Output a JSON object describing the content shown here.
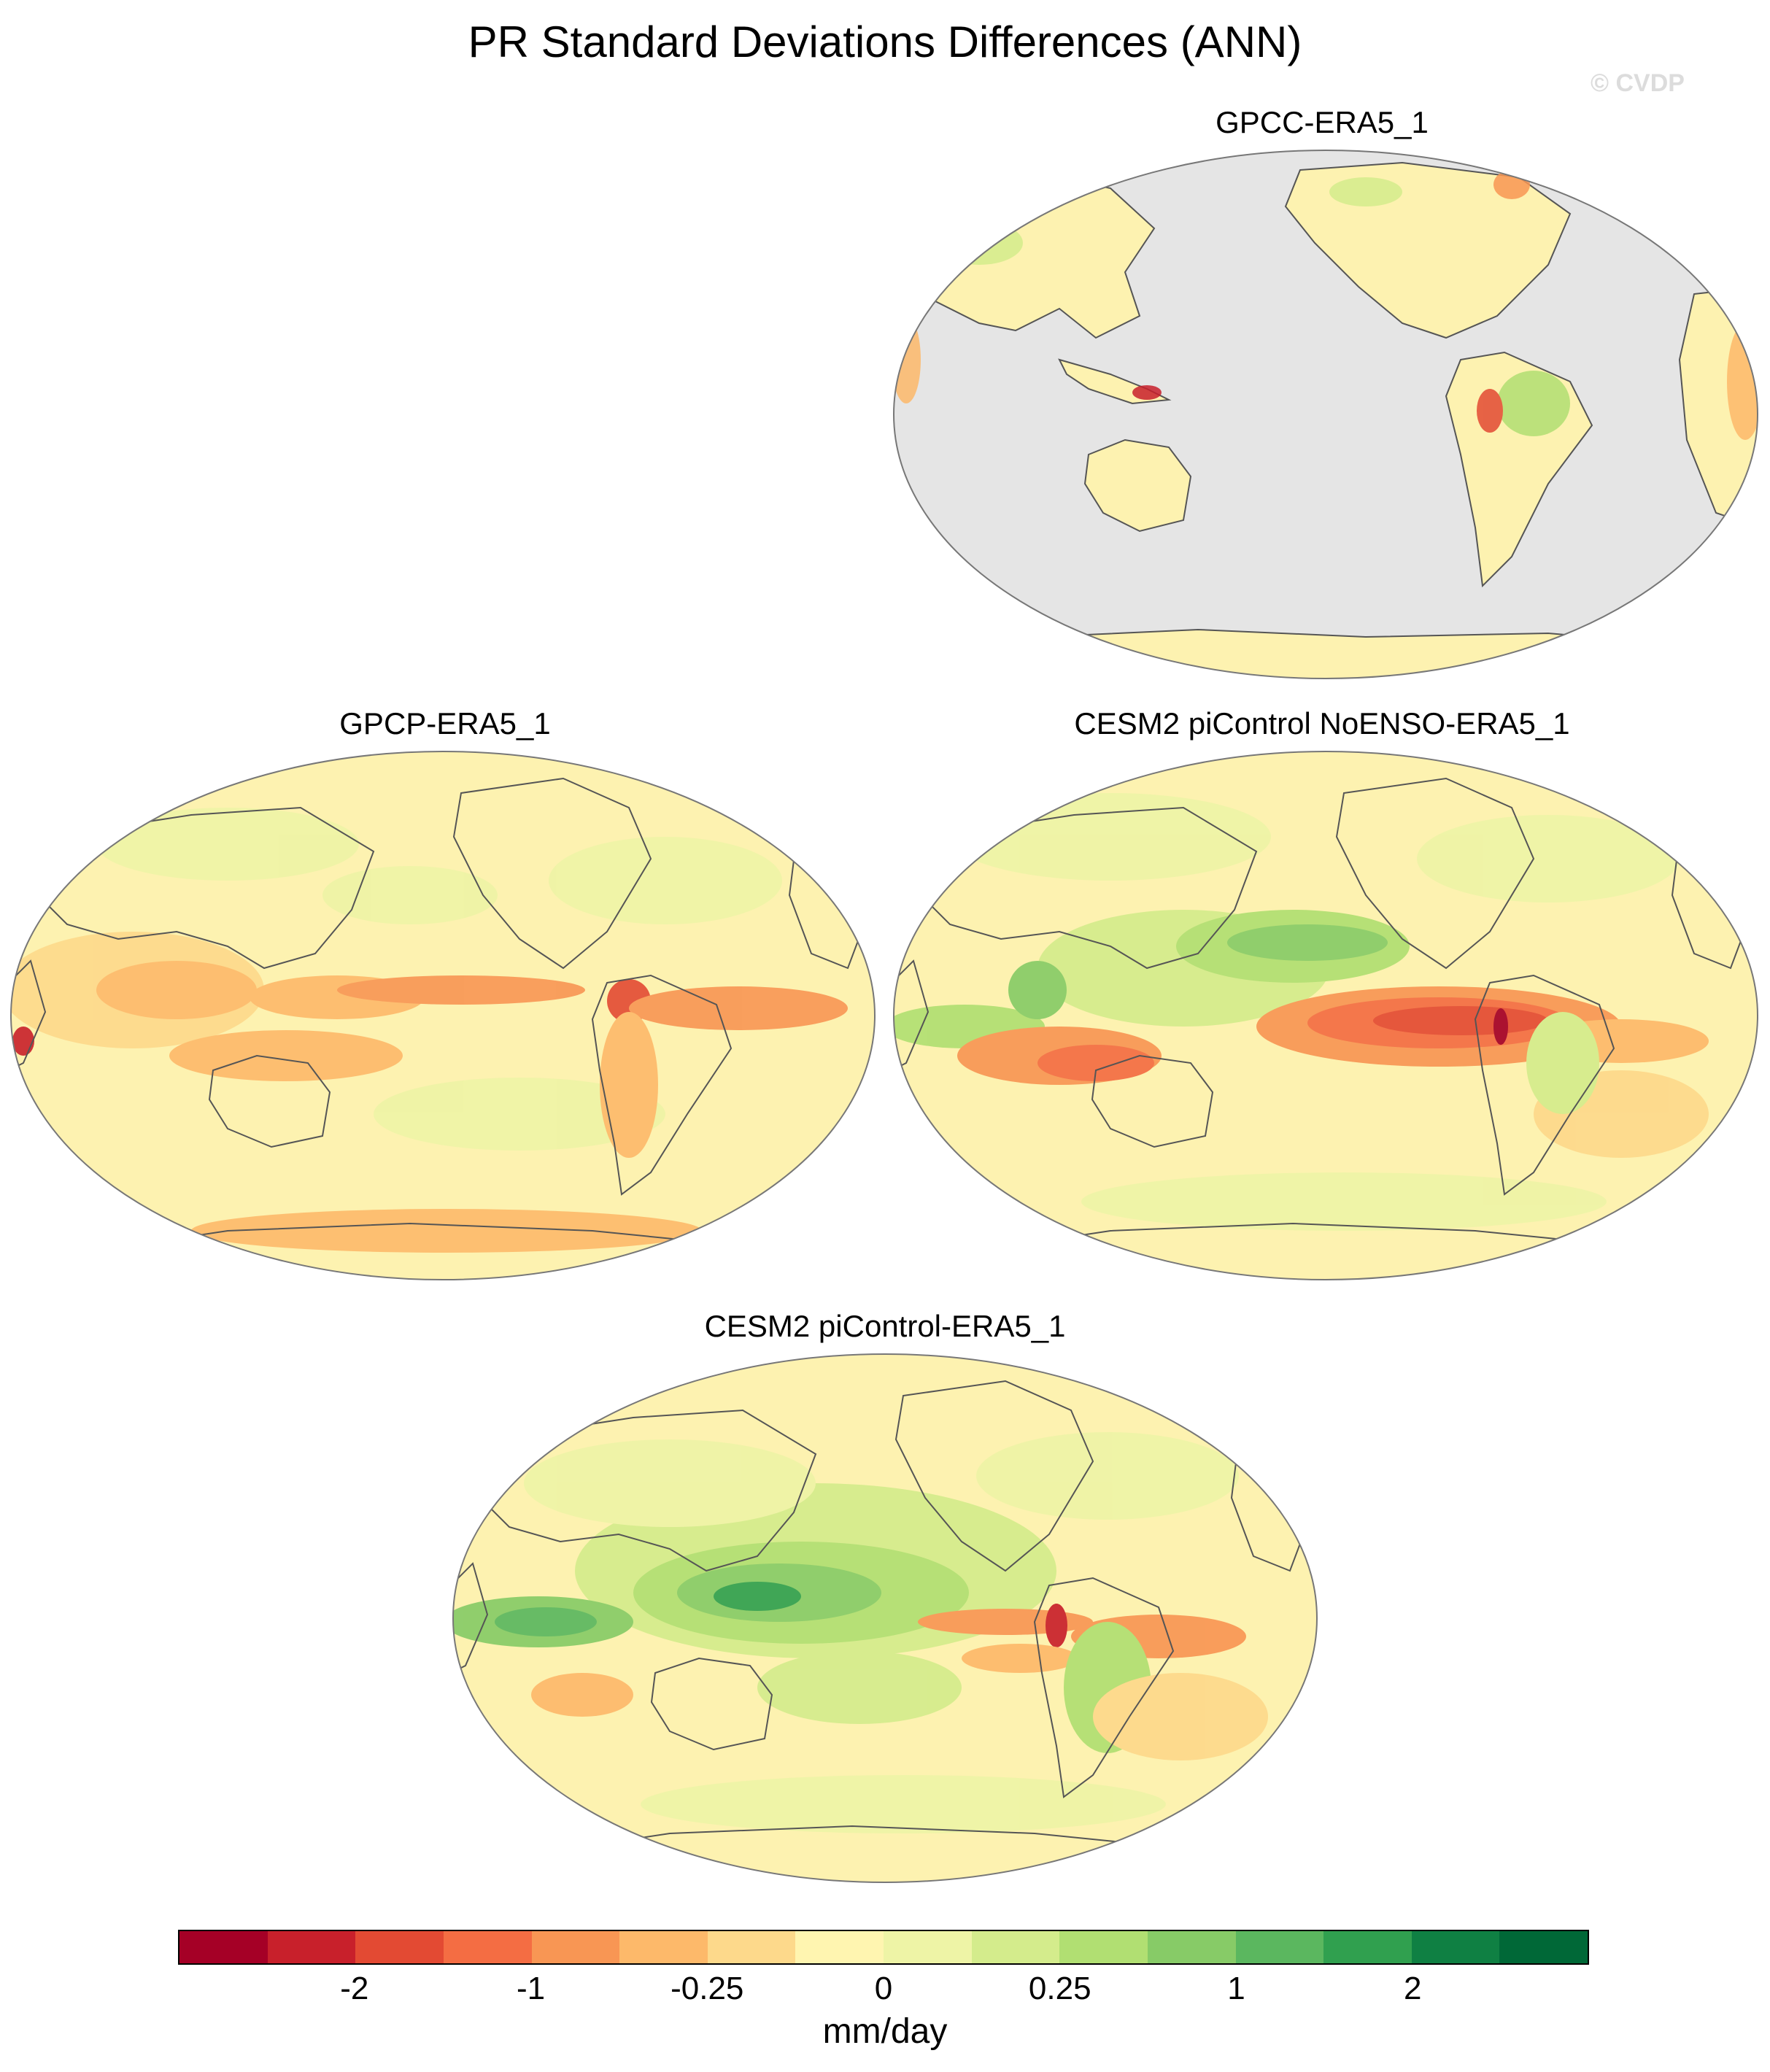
{
  "title": "PR Standard Deviations Differences (ANN)",
  "credit": "© CVDP",
  "colors": {
    "missing": "#e5e5e5",
    "background_field": "#fdf2b0",
    "coastline": "#555555"
  },
  "panels": [
    {
      "id": "gpcc",
      "title": "GPCC-ERA5_1",
      "ocean_masked": true
    },
    {
      "id": "gpcp",
      "title": "GPCP-ERA5_1",
      "ocean_masked": false
    },
    {
      "id": "noenso",
      "title": "CESM2 piControl NoENSO-ERA5_1",
      "ocean_masked": false
    },
    {
      "id": "picontrol",
      "title": "CESM2 piControl-ERA5_1",
      "ocean_masked": false
    }
  ],
  "colorbar": {
    "units": "mm/day",
    "colors": [
      "#a50026",
      "#c8202b",
      "#e34a33",
      "#f46d43",
      "#f89654",
      "#fdb96a",
      "#fdd98b",
      "#fff5b0",
      "#eef4a6",
      "#d4ec8c",
      "#b1df72",
      "#87cb67",
      "#5bb75f",
      "#30a04f",
      "#0f8043",
      "#006837"
    ],
    "tick_labels": [
      "-2",
      "-1",
      "-0.25",
      "0",
      "0.25",
      "1",
      "2"
    ],
    "tick_boundary_index": [
      2,
      4,
      6,
      8,
      10,
      12,
      14
    ]
  }
}
